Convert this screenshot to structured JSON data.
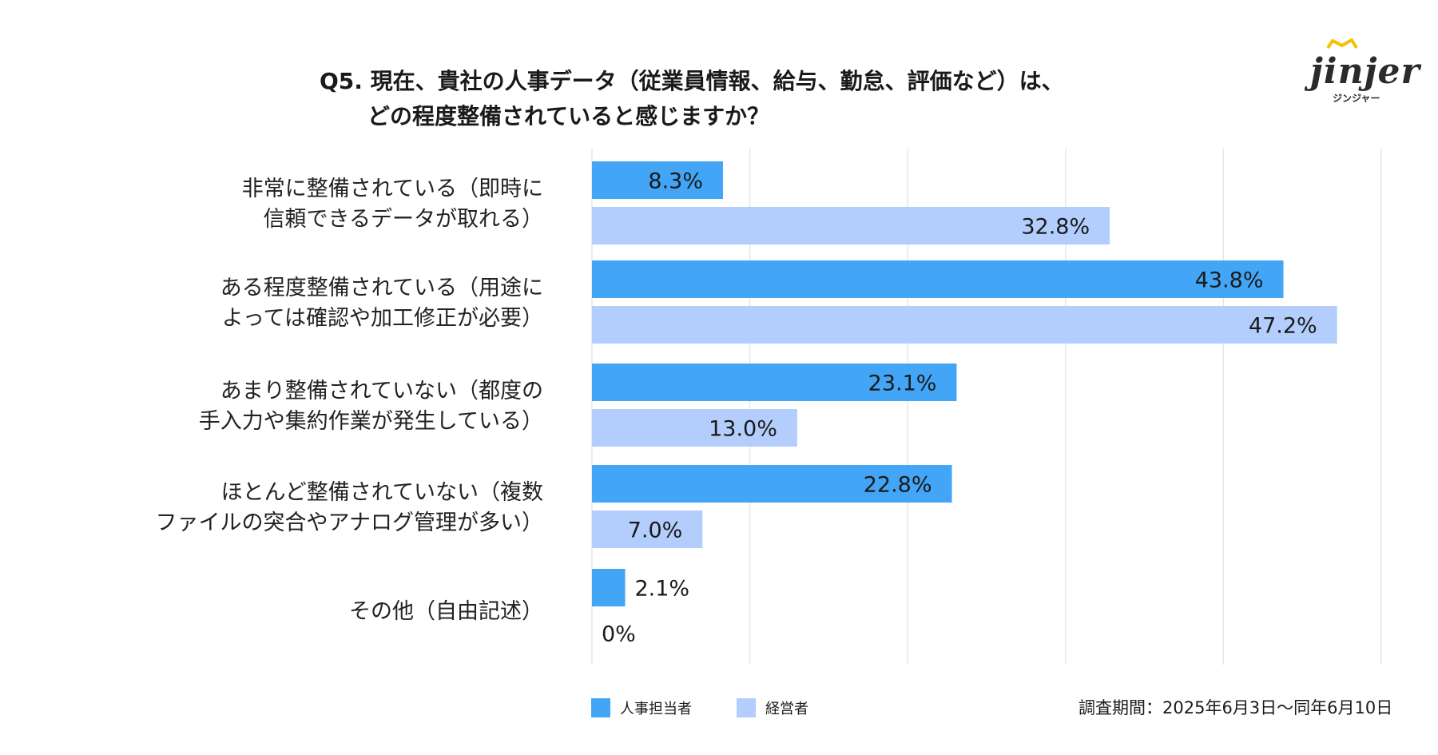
{
  "title": {
    "line1": "Q5. 現在、貴社の人事データ（従業員情報、給与、勤怠、評価など）は、",
    "line2": "どの程度整備されていると感じますか？"
  },
  "logo": {
    "text": "jinjer",
    "subtext": "ジンジャー"
  },
  "survey_period": "調査期間：2025年6月3日〜同年6月10日",
  "colors": {
    "hr": "#42a5f5",
    "exec": "#b3cdfc",
    "grid": "#e6e6e6"
  },
  "chart_data": {
    "type": "bar",
    "orientation": "horizontal",
    "categories": [
      [
        "非常に整備されている（即時に",
        "信頼できるデータが取れる）"
      ],
      [
        "ある程度整備されている（用途に",
        "よっては確認や加工修正が必要）"
      ],
      [
        "あまり整備されていない（都度の",
        "手入力や集約作業が発生している）"
      ],
      [
        "ほとんど整備されていない（複数",
        "ファイルの突合やアナログ管理が多い）"
      ],
      [
        "その他（自由記述）"
      ]
    ],
    "series": [
      {
        "name": "人事担当者",
        "values": [
          8.3,
          43.8,
          23.1,
          22.8,
          2.1
        ],
        "labels": [
          "8.3%",
          "43.8%",
          "23.1%",
          "22.8%",
          "2.1%"
        ]
      },
      {
        "name": "経営者",
        "values": [
          32.8,
          47.2,
          13.0,
          7.0,
          0
        ],
        "labels": [
          "32.8%",
          "47.2%",
          "13.0%",
          "7.0%",
          "0%"
        ]
      }
    ],
    "xlim": [
      0,
      50
    ],
    "grid": true,
    "legend": "bottom-left"
  }
}
